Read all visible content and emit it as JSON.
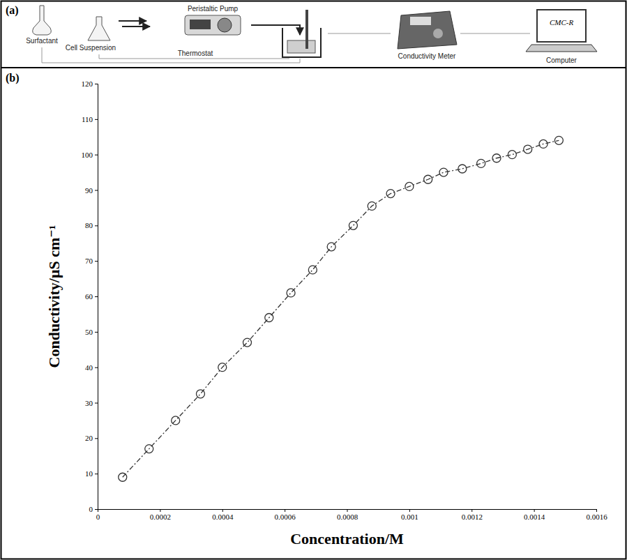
{
  "panels": [
    "(a)",
    "(b)"
  ],
  "diagram": {
    "nodes": [
      "Surfactant",
      "Cell Suspension",
      "Peristaltic Pump",
      "Thermostat",
      "Conductivity Meter",
      "Computer",
      "CMC-R"
    ]
  },
  "chart_data": {
    "type": "line",
    "x_label": "Concentration/M",
    "y_label": "Conductivity/μS cm⁻¹",
    "x": [
      8e-05,
      0.000165,
      0.00025,
      0.00033,
      0.0004,
      0.00048,
      0.00055,
      0.00062,
      0.00069,
      0.00075,
      0.00082,
      0.00088,
      0.00094,
      0.001,
      0.00106,
      0.00111,
      0.00117,
      0.00123,
      0.00128,
      0.00133,
      0.00138,
      0.00143,
      0.00148
    ],
    "series": [
      {
        "values": [
          9,
          17,
          25,
          32.5,
          40,
          47,
          54,
          61,
          67.5,
          74,
          80,
          85.5,
          89,
          91,
          93,
          95,
          96,
          97.5,
          99,
          100,
          101.5,
          103,
          104
        ],
        "color": "#333333",
        "marker": "circle",
        "line_style": "dashed"
      }
    ],
    "xlim": [
      0,
      0.0016
    ],
    "xticks": [
      0,
      0.0002,
      0.0004,
      0.0006,
      0.0008,
      0.001,
      0.0012,
      0.0014,
      0.0016
    ],
    "ylim": [
      0,
      120
    ],
    "yticks": [
      0,
      10,
      20,
      30,
      40,
      50,
      60,
      70,
      80,
      90,
      100,
      110,
      120
    ],
    "grid": false
  }
}
